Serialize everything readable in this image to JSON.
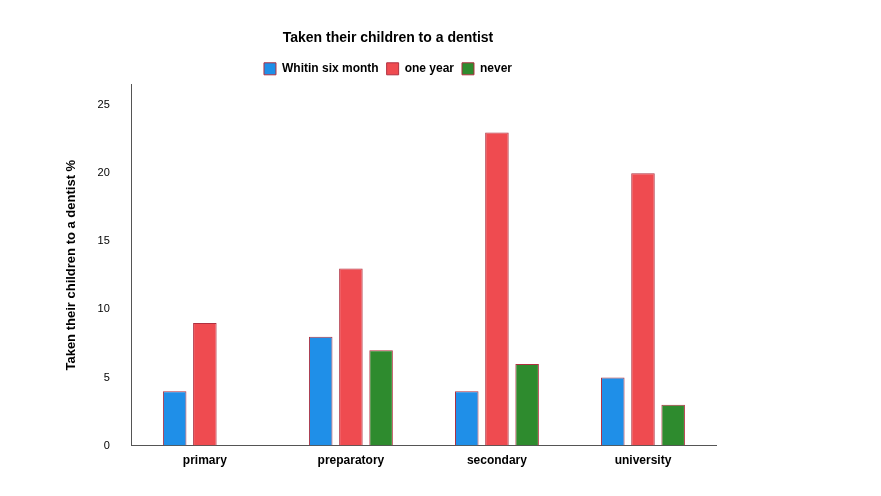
{
  "chart_data": {
    "type": "bar",
    "title": "Taken their children to a dentist",
    "y_label": "Taken their children to a dentist %",
    "categories": [
      "primary",
      "preparatory",
      "secondary",
      "university"
    ],
    "series": [
      {
        "name": "Whitin six month",
        "color": "#1f8fe8",
        "values": [
          4,
          8,
          4,
          5
        ]
      },
      {
        "name": "one year",
        "color": "#ef4b50",
        "values": [
          9,
          13,
          23,
          20
        ]
      },
      {
        "name": "never",
        "color": "#2e8b2e",
        "values": [
          null,
          7,
          6,
          3
        ]
      }
    ],
    "ylim": [
      0,
      26.5
    ],
    "yticks": [
      0,
      5,
      10,
      15,
      20,
      25
    ],
    "grid": false,
    "legend": "top"
  }
}
